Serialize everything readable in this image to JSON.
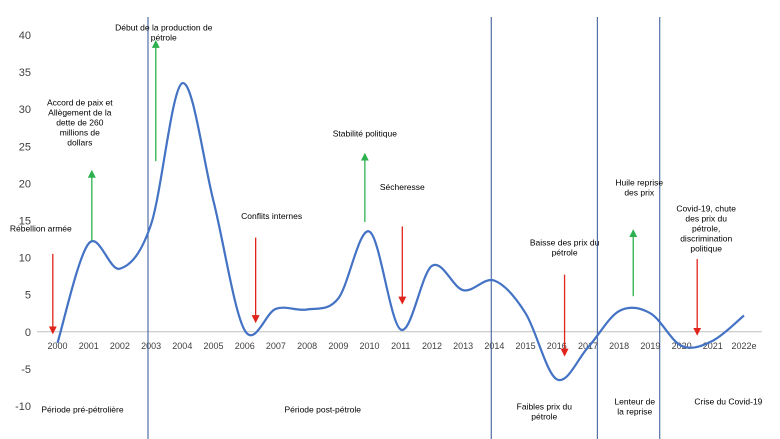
{
  "chart_data": {
    "type": "line",
    "title": "",
    "xlabel": "",
    "ylabel": "",
    "ylim": [
      -10,
      40
    ],
    "y_ticks": [
      "-10",
      "-5",
      "0",
      "5",
      "10",
      "15",
      "20",
      "25",
      "30",
      "35",
      "40"
    ],
    "x_labels": [
      "2000",
      "2001",
      "2002",
      "2003",
      "2004",
      "2005",
      "2006",
      "2007",
      "2008",
      "2009",
      "2010",
      "2011",
      "2012",
      "2013",
      "2014",
      "2015",
      "2016",
      "2017",
      "2018",
      "2019",
      "2020",
      "2021",
      "2022e"
    ],
    "series": [
      {
        "name": "",
        "color": "#4472c4",
        "x": [
          2000,
          2001,
          2002,
          2003,
          2004,
          2005,
          2006,
          2007,
          2008,
          2009,
          2010,
          2011,
          2012,
          2013,
          2014,
          2015,
          2016,
          2017,
          2018,
          2019,
          2020,
          2021,
          2022
        ],
        "values": [
          -1.5,
          11.9,
          8.5,
          14.5,
          33.5,
          17.6,
          0.2,
          3.1,
          3.0,
          4.5,
          13.5,
          0.3,
          8.9,
          5.6,
          6.9,
          2.5,
          -6.4,
          -2.1,
          2.8,
          2.5,
          -1.9,
          -1.2,
          2.2
        ]
      }
    ],
    "dividers": [
      2002.9,
      2013.9,
      2017.3,
      2019.3
    ],
    "events": [
      {
        "label": "Rébellion armée",
        "x": 1999.85,
        "label_y": 13.5,
        "arrow": "down",
        "from": 10.5,
        "to": 0.2,
        "color": "#e0241b"
      },
      {
        "label": "Accord de paix et Allègement de la dette de 260 millions de dollars",
        "x": 2001.1,
        "label_y": 30.5,
        "arrow": "up",
        "from": 12.3,
        "to": 21.3,
        "color": "#2db14f"
      },
      {
        "label": "Début de la production de pétrole",
        "x": 2003.15,
        "label_y": 40.6,
        "arrow": "up",
        "from": 23,
        "to": 38.8,
        "color": "#2db14f"
      },
      {
        "label": "Conflits internes",
        "x": 2006.35,
        "label_y": 15.2,
        "arrow": "down",
        "from": 12.7,
        "to": 1.7,
        "color": "#e0241b"
      },
      {
        "label": "Stabilité politique",
        "x": 2009.85,
        "label_y": 26.3,
        "arrow": "up",
        "from": 14.8,
        "to": 23.6,
        "color": "#2db14f"
      },
      {
        "label": "Sécheresse",
        "x": 2011.05,
        "label_y": 19.1,
        "arrow": "down",
        "from": 14.2,
        "to": 4.2,
        "color": "#e0241b"
      },
      {
        "label": "Baisse des prix du pétrole",
        "x": 2016.25,
        "label_y": 11.6,
        "arrow": "down",
        "from": 7.7,
        "to": -2.8,
        "color": "#e0241b"
      },
      {
        "label": "Huile reprise des prix",
        "x": 2018.45,
        "label_y": 19.7,
        "arrow": "up",
        "from": 4.8,
        "to": 13.3,
        "color": "#2db14f"
      },
      {
        "label": "Covid-19, chute des prix du pétrole, discrimination politique",
        "x": 2020.5,
        "label_y": 16.2,
        "arrow": "down",
        "from": 9.8,
        "to": 0,
        "color": "#e0241b"
      }
    ],
    "periods": [
      {
        "label": "Période pré-pétrolière",
        "x": 2000.8,
        "y": -10.9
      },
      {
        "label": "Période post-pétrole",
        "x": 2008.5,
        "y": -10.9
      },
      {
        "label": "Faibles prix du pétrole",
        "x": 2015.6,
        "y": -10.5
      },
      {
        "label": "Lenteur de la reprise",
        "x": 2018.5,
        "y": -9.8
      },
      {
        "label": "Crise du Covid-19",
        "x": 2021.5,
        "y": -9.8
      }
    ]
  }
}
